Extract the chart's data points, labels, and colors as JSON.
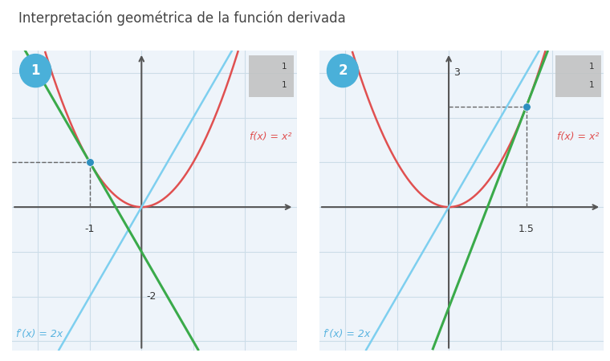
{
  "title": "Interpretación geométrica de la función derivada",
  "title_fontsize": 12,
  "title_color": "#444444",
  "bg_color": "#eef4fa",
  "panel1": {
    "badge": "1",
    "badge_color": "#4ab0d9",
    "point_x": -1.0,
    "point_y": 1.0,
    "tangent_slope": -2.0,
    "xlim": [
      -2.5,
      3.0
    ],
    "ylim": [
      -3.2,
      3.5
    ],
    "tick_x_val": -1,
    "tick_x_label": "-1",
    "tick_y_val": -2,
    "tick_y_label": "-2",
    "label_fx": "f(x) = x²",
    "label_fpx": "f′(x) = 2x",
    "label_fx_color": "#e05050",
    "label_fpx_color": "#5ab4e0",
    "grid_color": "#ccdde8",
    "axis_color": "#555555",
    "dashed_left_only": true
  },
  "panel2": {
    "badge": "2",
    "badge_color": "#4ab0d9",
    "point_x": 1.5,
    "point_y": 2.25,
    "tangent_slope": 3.0,
    "xlim": [
      -2.5,
      3.0
    ],
    "ylim": [
      -3.2,
      3.5
    ],
    "tick_x_val": 1.5,
    "tick_x_label": "1.5",
    "tick_y_val": 3,
    "tick_y_label": "3",
    "label_fx": "f(x) = x²",
    "label_fpx": "f′(x) = 2x",
    "label_fx_color": "#e05050",
    "label_fpx_color": "#5ab4e0",
    "grid_color": "#ccdde8",
    "axis_color": "#555555",
    "dashed_left_only": false
  },
  "slope_line_color": "#7ecfef",
  "tangent_color": "#3aaa4a",
  "parabola_color": "#e05050",
  "point_color": "#2e8fbf",
  "point_size": 7
}
